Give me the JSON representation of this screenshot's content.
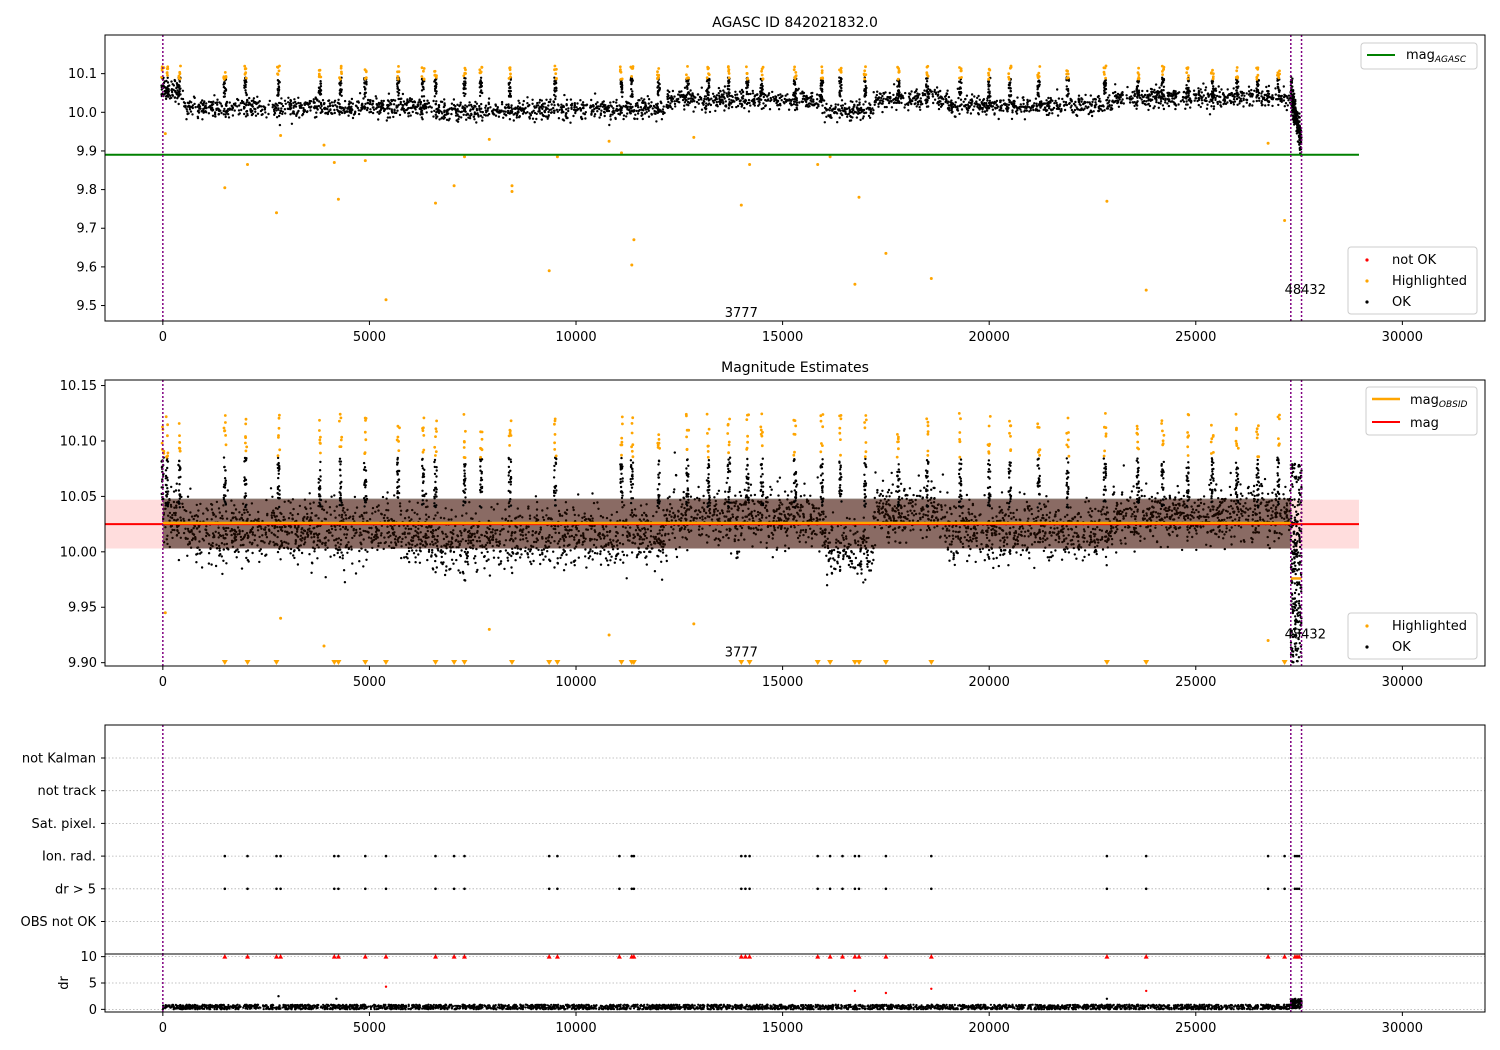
{
  "chart_data": [
    {
      "type": "scatter",
      "title": "AGASC ID 842021832.0",
      "xlim": [
        -1400,
        32000
      ],
      "ylim": [
        9.46,
        10.2
      ],
      "x_ticks": [
        0,
        5000,
        10000,
        15000,
        20000,
        25000,
        30000
      ],
      "x_tick_labels": [
        "0",
        "5000",
        "10000",
        "15000",
        "20000",
        "25000",
        "30000"
      ],
      "y_ticks": [
        9.5,
        9.6,
        9.7,
        9.8,
        9.9,
        10.0,
        10.1
      ],
      "y_tick_labels": [
        "9.5",
        "9.6",
        "9.7",
        "9.8",
        "9.9",
        "10.0",
        "10.1"
      ],
      "vlines": [
        0,
        27300,
        27560
      ],
      "obsid_labels": [
        {
          "text": "3777",
          "x": 13600,
          "y": 9.47
        },
        {
          "text": "48432",
          "x": 27150,
          "y": 9.53
        }
      ],
      "hline": {
        "name": "mag_AGASC",
        "value": 9.89,
        "x_range": [
          -1400,
          28950
        ],
        "color": "#008000"
      },
      "ok_segments": [
        {
          "x": [
            0,
            500
          ],
          "y": [
            10.045,
            10.065
          ]
        },
        {
          "x": [
            500,
            6500
          ],
          "y": [
            10.005,
            10.02
          ]
        },
        {
          "x": [
            6500,
            8500
          ],
          "y": [
            9.995,
            10.01
          ]
        },
        {
          "x": [
            8500,
            12200
          ],
          "y": [
            10.0,
            10.015
          ]
        },
        {
          "x": [
            12200,
            16000
          ],
          "y": [
            10.025,
            10.04
          ]
        },
        {
          "x": [
            16000,
            17200
          ],
          "y": [
            10.0,
            10.01
          ]
        },
        {
          "x": [
            17200,
            19000
          ],
          "y": [
            10.03,
            10.04
          ]
        },
        {
          "x": [
            19000,
            23000
          ],
          "y": [
            10.015,
            10.02
          ]
        },
        {
          "x": [
            23000,
            27300
          ],
          "y": [
            10.03,
            10.045
          ]
        }
      ],
      "dip": {
        "x": [
          27300,
          27560
        ],
        "y_top": 10.05,
        "y_bottom": 9.88
      },
      "highlighted_points": [
        [
          60,
          9.945
        ],
        [
          1500,
          9.805
        ],
        [
          2050,
          9.865
        ],
        [
          2750,
          9.74
        ],
        [
          2850,
          9.94
        ],
        [
          3900,
          9.915
        ],
        [
          4150,
          9.87
        ],
        [
          4250,
          9.775
        ],
        [
          4900,
          9.875
        ],
        [
          5400,
          9.515
        ],
        [
          6600,
          9.765
        ],
        [
          7050,
          9.81
        ],
        [
          7300,
          9.885
        ],
        [
          7900,
          9.93
        ],
        [
          8450,
          9.81
        ],
        [
          8450,
          9.795
        ],
        [
          9350,
          9.59
        ],
        [
          9550,
          9.885
        ],
        [
          10800,
          9.925
        ],
        [
          11100,
          9.895
        ],
        [
          11350,
          9.605
        ],
        [
          11400,
          9.67
        ],
        [
          12850,
          9.935
        ],
        [
          14000,
          9.76
        ],
        [
          14200,
          9.865
        ],
        [
          15850,
          9.865
        ],
        [
          16150,
          9.885
        ],
        [
          16750,
          9.555
        ],
        [
          16850,
          9.78
        ],
        [
          17500,
          9.635
        ],
        [
          18600,
          9.57
        ],
        [
          22850,
          9.77
        ],
        [
          23800,
          9.54
        ],
        [
          26750,
          9.92
        ],
        [
          27150,
          9.72
        ]
      ],
      "highlight_spike_xs": [
        0,
        100,
        400,
        1500,
        2000,
        2800,
        3800,
        4300,
        4900,
        5700,
        6300,
        6600,
        7300,
        7700,
        8400,
        9500,
        11100,
        11350,
        12000,
        12700,
        13200,
        13700,
        14150,
        14500,
        15300,
        15950,
        16400,
        17000,
        17800,
        18500,
        19300,
        20000,
        20500,
        21200,
        21900,
        22800,
        23600,
        24200,
        24800,
        25400,
        26000,
        26500,
        27000
      ],
      "legend": [
        "not OK",
        "Highlighted",
        "OK"
      ],
      "legend_position": "lower right",
      "line_legend": [
        "mag_AGASC"
      ],
      "line_legend_position": "upper right",
      "colors": {
        "ok": "#000000",
        "highlighted": "#ffa500",
        "not_ok": "#ff0000",
        "agasc_line": "#008000",
        "vline": "#800080"
      }
    },
    {
      "type": "scatter",
      "title": "Magnitude Estimates",
      "xlim": [
        -1400,
        32000
      ],
      "ylim": [
        9.897,
        10.155
      ],
      "x_ticks": [
        0,
        5000,
        10000,
        15000,
        20000,
        25000,
        30000
      ],
      "x_tick_labels": [
        "0",
        "5000",
        "10000",
        "15000",
        "20000",
        "25000",
        "30000"
      ],
      "y_ticks": [
        9.9,
        9.95,
        10.0,
        10.05,
        10.1,
        10.15
      ],
      "y_tick_labels": [
        "9.90",
        "9.95",
        "10.00",
        "10.05",
        "10.10",
        "10.15"
      ],
      "vlines": [
        0,
        27300,
        27560
      ],
      "obsid_labels": [
        {
          "text": "3777",
          "x": 13600,
          "y": 9.9055
        },
        {
          "text": "48432",
          "x": 27150,
          "y": 9.922
        }
      ],
      "mag": 10.025,
      "mag_band": [
        10.003,
        10.047
      ],
      "obsid_segments": [
        {
          "x": [
            0,
            12200
          ],
          "y": 10.026
        },
        {
          "x": [
            12200,
            27300
          ],
          "y": 10.026
        },
        {
          "x": [
            27300,
            27560
          ],
          "y": 9.976
        }
      ],
      "band_segments": [
        {
          "x": [
            0,
            12200
          ],
          "y": [
            10.003,
            10.048
          ]
        },
        {
          "x": [
            12200,
            27300
          ],
          "y": [
            10.003,
            10.048
          ]
        }
      ],
      "ok_segments": [
        {
          "x": [
            0,
            500
          ],
          "y": [
            10.02,
            10.045
          ]
        },
        {
          "x": [
            500,
            6500
          ],
          "y": [
            10.008,
            10.03
          ]
        },
        {
          "x": [
            6500,
            8500
          ],
          "y": [
            9.995,
            10.02
          ]
        },
        {
          "x": [
            8500,
            12200
          ],
          "y": [
            10.005,
            10.025
          ]
        },
        {
          "x": [
            12200,
            16000
          ],
          "y": [
            10.022,
            10.04
          ]
        },
        {
          "x": [
            16000,
            17200
          ],
          "y": [
            9.995,
            10.01
          ]
        },
        {
          "x": [
            17200,
            19000
          ],
          "y": [
            10.028,
            10.045
          ]
        },
        {
          "x": [
            19000,
            23000
          ],
          "y": [
            10.008,
            10.028
          ]
        },
        {
          "x": [
            23000,
            27300
          ],
          "y": [
            10.025,
            10.042
          ]
        }
      ],
      "dip": {
        "x": [
          27300,
          27560
        ],
        "y_top": 10.08,
        "y_bottom": 9.9
      },
      "lower_markers_x": [
        1500,
        2050,
        2750,
        4150,
        4250,
        4900,
        5400,
        6600,
        7050,
        7300,
        8450,
        9350,
        9550,
        11100,
        11350,
        11400,
        14000,
        14200,
        15850,
        16150,
        16750,
        16850,
        17500,
        18600,
        22850,
        23800,
        27150
      ],
      "legend": [
        "Highlighted",
        "OK"
      ],
      "legend_position": "lower right",
      "line_legend": [
        "mag_OBSID",
        "mag"
      ],
      "line_legend_position": "upper right",
      "colors": {
        "ok": "#000000",
        "highlighted": "#ffa500",
        "mag": "#ff0000",
        "mag_obsid": "#ffa500",
        "band": "#ffb3b3",
        "band_dark": "#2a0c00",
        "vline": "#800080"
      }
    },
    {
      "type": "scatter",
      "title": "",
      "xlim": [
        -1400,
        32000
      ],
      "y_categories": [
        "not Kalman",
        "not track",
        "Sat. pixel.",
        "Ion. rad.",
        "dr > 5",
        "OBS not OK"
      ],
      "flag_xs": [
        1500,
        2050,
        2750,
        2850,
        4150,
        4250,
        4900,
        5400,
        6600,
        7050,
        7300,
        9350,
        9550,
        11050,
        11350,
        11400,
        14000,
        14100,
        14200,
        15850,
        16150,
        16450,
        16750,
        16850,
        17500,
        18600,
        22850,
        23800,
        26750,
        27150,
        27400,
        27450,
        27500
      ],
      "flagged_categories": [
        "Ion. rad.",
        "dr > 5"
      ],
      "vlines": [
        0,
        27300,
        27560
      ],
      "colors": {
        "points": "#000000",
        "grid": "#b0b0b0",
        "vline": "#800080"
      }
    },
    {
      "type": "scatter",
      "title": "",
      "xlim": [
        -1400,
        32000
      ],
      "ylim": [
        -0.5,
        10.5
      ],
      "ylabel": "dr",
      "x_ticks": [
        0,
        5000,
        10000,
        15000,
        20000,
        25000,
        30000
      ],
      "x_tick_labels": [
        "0",
        "5000",
        "10000",
        "15000",
        "20000",
        "25000",
        "30000"
      ],
      "y_ticks": [
        0,
        5,
        10
      ],
      "y_tick_labels": [
        "0",
        "5",
        "10"
      ],
      "vlines": [
        0,
        27300,
        27560
      ],
      "baseline_range": [
        0.0,
        0.9
      ],
      "capped_value": 10,
      "capped_xs": [
        1500,
        2050,
        2750,
        2850,
        4150,
        4250,
        4900,
        5400,
        6600,
        7050,
        7300,
        9350,
        9550,
        11050,
        11350,
        11400,
        14000,
        14100,
        14200,
        15850,
        16150,
        16450,
        16750,
        16850,
        17500,
        18600,
        22850,
        23800,
        26750,
        27150,
        27400,
        27450,
        27500
      ],
      "outliers": [
        [
          5400,
          4.3
        ],
        [
          16750,
          3.5
        ],
        [
          17500,
          3.1
        ],
        [
          18600,
          3.9
        ],
        [
          23800,
          3.5
        ],
        [
          2800,
          2.5
        ],
        [
          4200,
          2.0
        ],
        [
          22850,
          2.0
        ]
      ],
      "colors": {
        "points": "#000000",
        "capped": "#ff0000",
        "grid": "#b0b0b0",
        "vline": "#800080"
      }
    }
  ]
}
